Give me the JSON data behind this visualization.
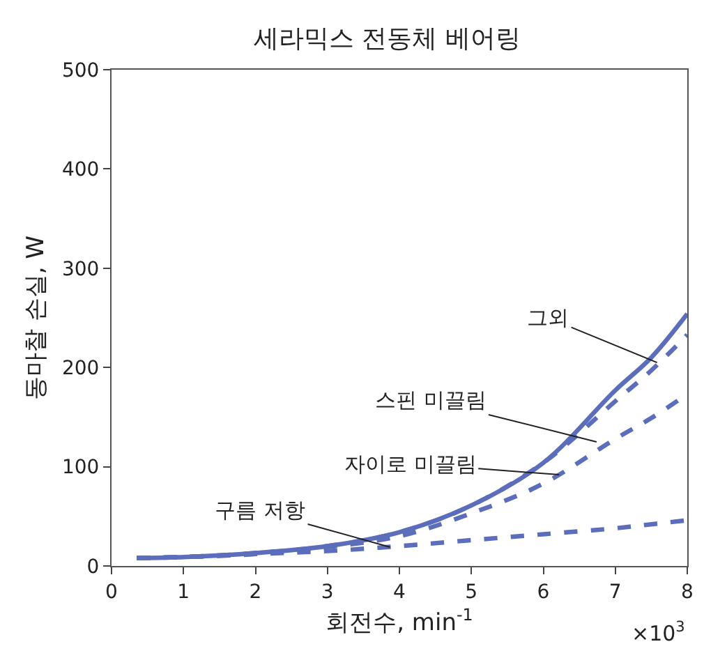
{
  "chart_data": {
    "type": "line",
    "title": "세라믹스 전동체 베어링",
    "xlabel": "회전수, min$^{-1}$",
    "ylabel": "동마찰 손실, W",
    "x": [
      0.35,
      1,
      2,
      3,
      4,
      5,
      6,
      7,
      7.5,
      8
    ],
    "series": [
      {
        "color": "#5b6dbb",
        "line_style": "solid",
        "values": [
          8,
          9,
          13,
          20,
          34,
          61,
          104,
          177,
          210,
          254
        ]
      },
      {
        "color": "#5b6dbb",
        "line_style": "dashed",
        "values": [
          8,
          9,
          13,
          20,
          34,
          61,
          104,
          166,
          197,
          233
        ]
      },
      {
        "color": "#5b6dbb",
        "line_style": "dashed",
        "values": [
          8,
          9,
          12,
          19,
          30,
          53,
          83,
          128,
          149,
          173
        ]
      },
      {
        "color": "#5b6dbb",
        "line_style": "dashed",
        "values": [
          8,
          9,
          12,
          15,
          20,
          26,
          32,
          38,
          42,
          46
        ]
      }
    ],
    "annotations": [
      {
        "text": "그외",
        "x": 7.58,
        "y": 205
      },
      {
        "text": "스핀 미끌림",
        "x": 6.74,
        "y": 125
      },
      {
        "text": "자이로 미끌림",
        "x": 6.22,
        "y": 92
      },
      {
        "text": "구름 저항",
        "x": 3.87,
        "y": 19
      },
      "×10$^{3}$"
    ],
    "xlim": [
      0,
      8
    ],
    "xticks": [
      0,
      1,
      2,
      3,
      4,
      5,
      6,
      7,
      8
    ],
    "ylim": [
      0,
      500
    ],
    "yticks": [
      0,
      100,
      200,
      300,
      400,
      500
    ],
    "marker": "none"
  }
}
